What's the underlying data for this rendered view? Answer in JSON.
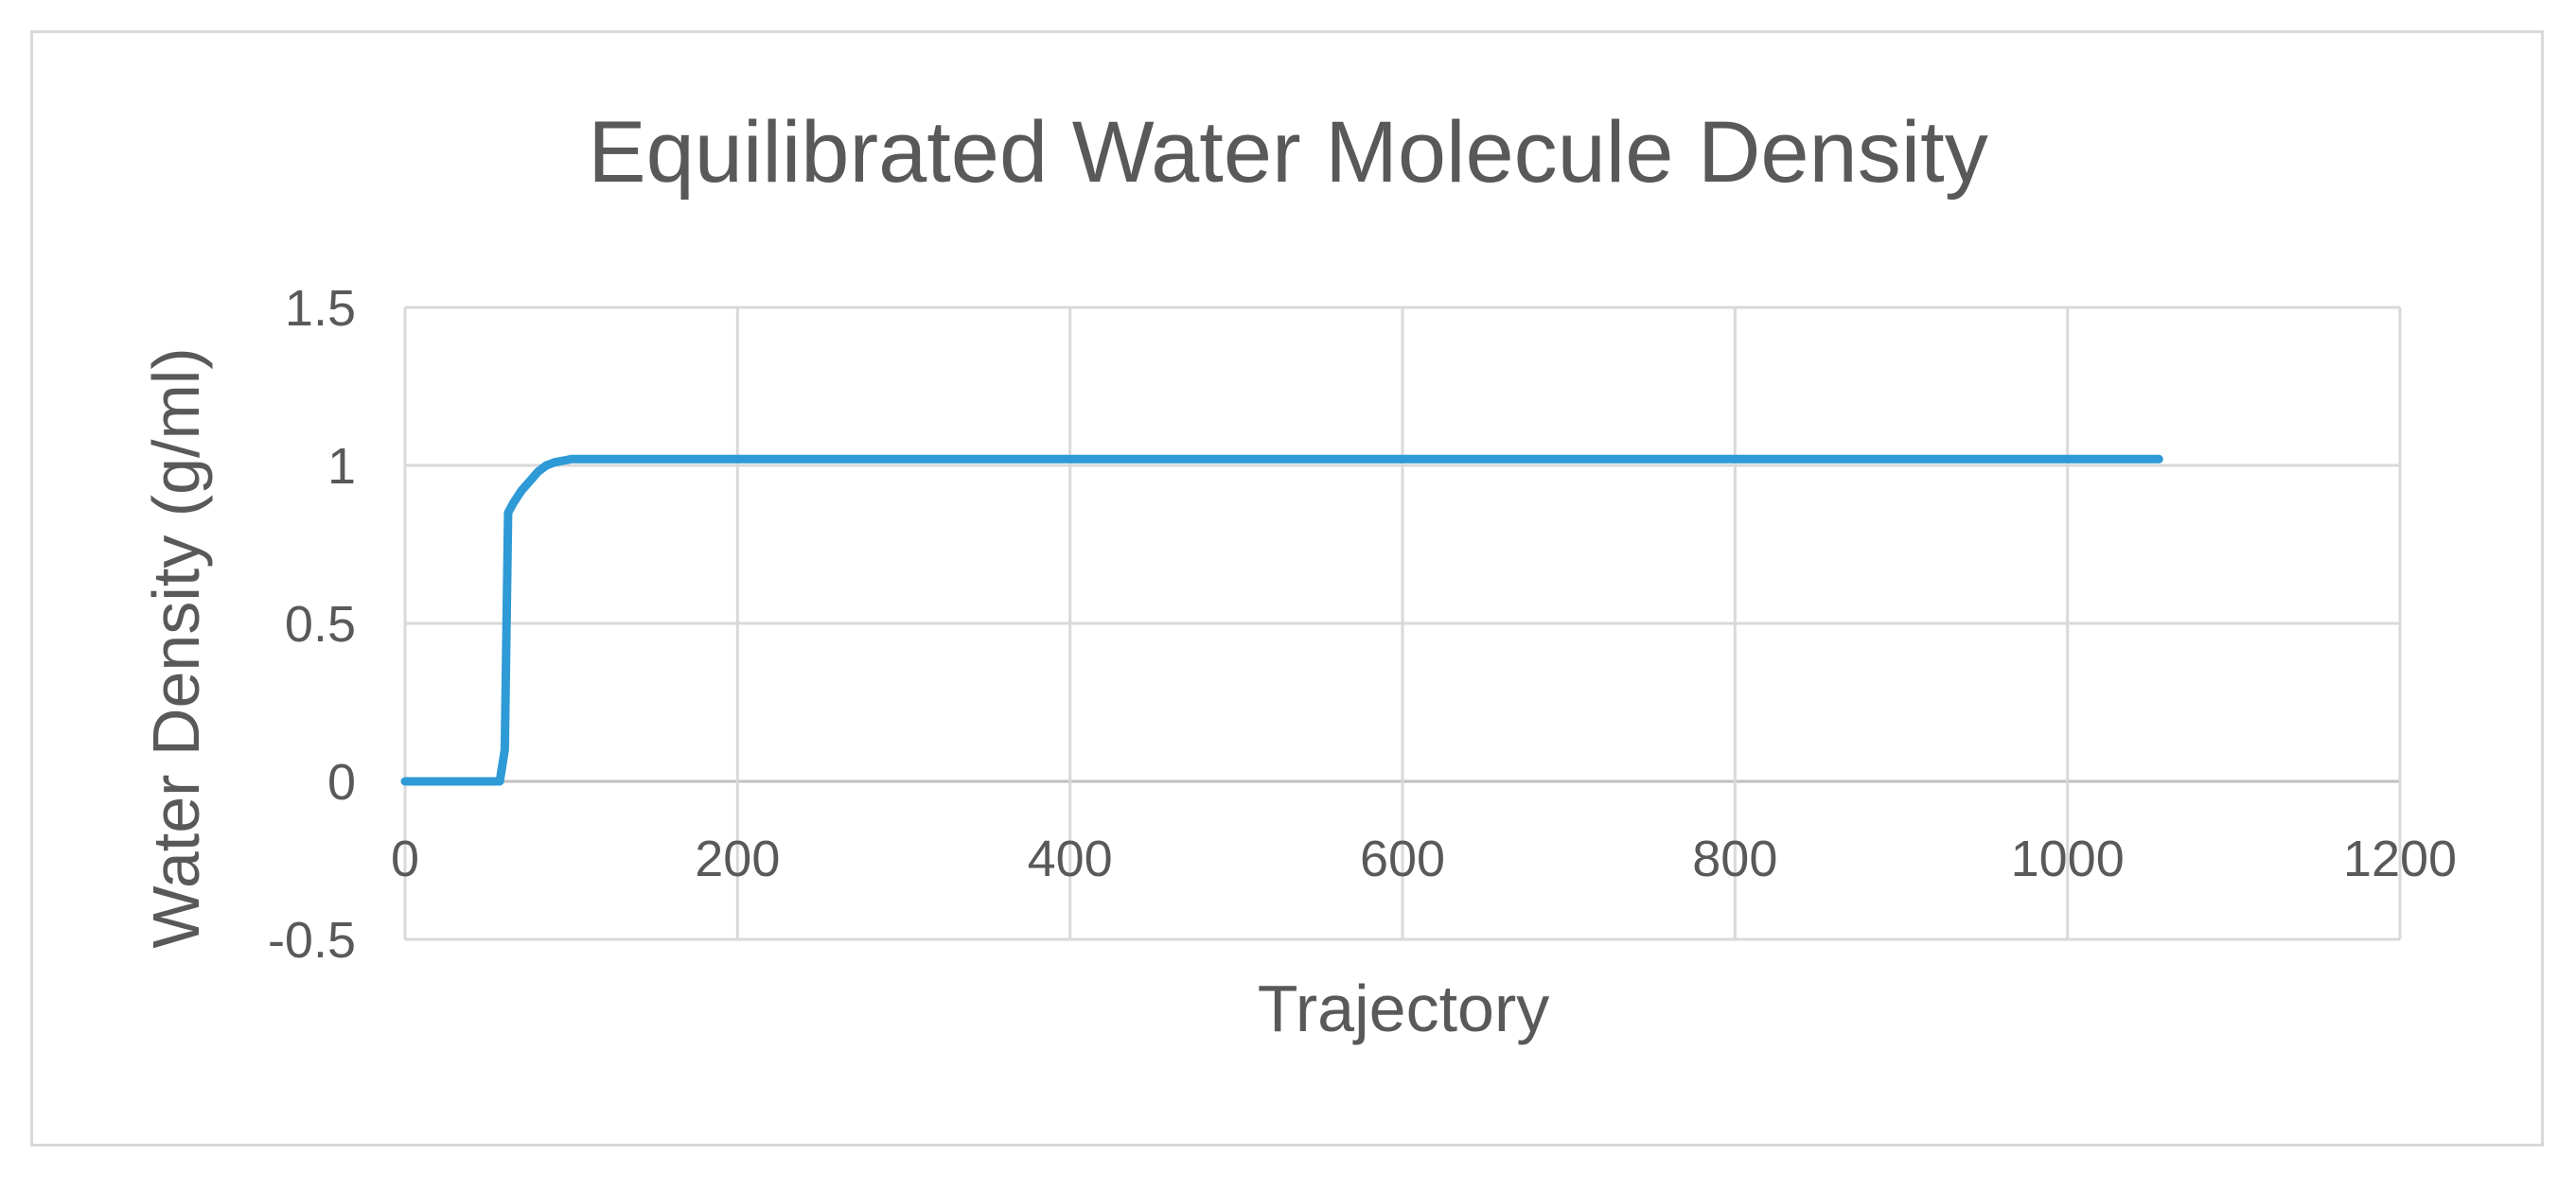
{
  "chart_data": {
    "type": "line",
    "title": "Equilibrated Water Molecule Density",
    "xlabel": "Trajectory",
    "ylabel": "Water Density (g/ml)",
    "xlim": [
      0,
      1200
    ],
    "ylim": [
      -0.5,
      1.5
    ],
    "x_ticks": [
      0,
      200,
      400,
      600,
      800,
      1000,
      1200
    ],
    "y_ticks": [
      -0.5,
      0,
      0.5,
      1,
      1.5
    ],
    "x_tick_labels": [
      "0",
      "200",
      "400",
      "600",
      "800",
      "1000",
      "1200"
    ],
    "y_tick_labels": [
      "-0.5",
      "0",
      "0.5",
      "1",
      "1.5"
    ],
    "grid": true,
    "legend": "none",
    "colors": {
      "series": "#2e9ad6",
      "grid": "#d9d9d9",
      "text": "#595959"
    },
    "series": [
      {
        "x": [
          0,
          57,
          60,
          62,
          65,
          70,
          75,
          80,
          85,
          90,
          95,
          100,
          150,
          260,
          400,
          600,
          800,
          1000,
          1055
        ],
        "values": [
          0,
          0,
          0.1,
          0.85,
          0.88,
          0.92,
          0.95,
          0.98,
          1.0,
          1.01,
          1.015,
          1.02,
          1.02,
          1.02,
          1.02,
          1.02,
          1.02,
          1.02,
          1.02
        ]
      }
    ]
  }
}
